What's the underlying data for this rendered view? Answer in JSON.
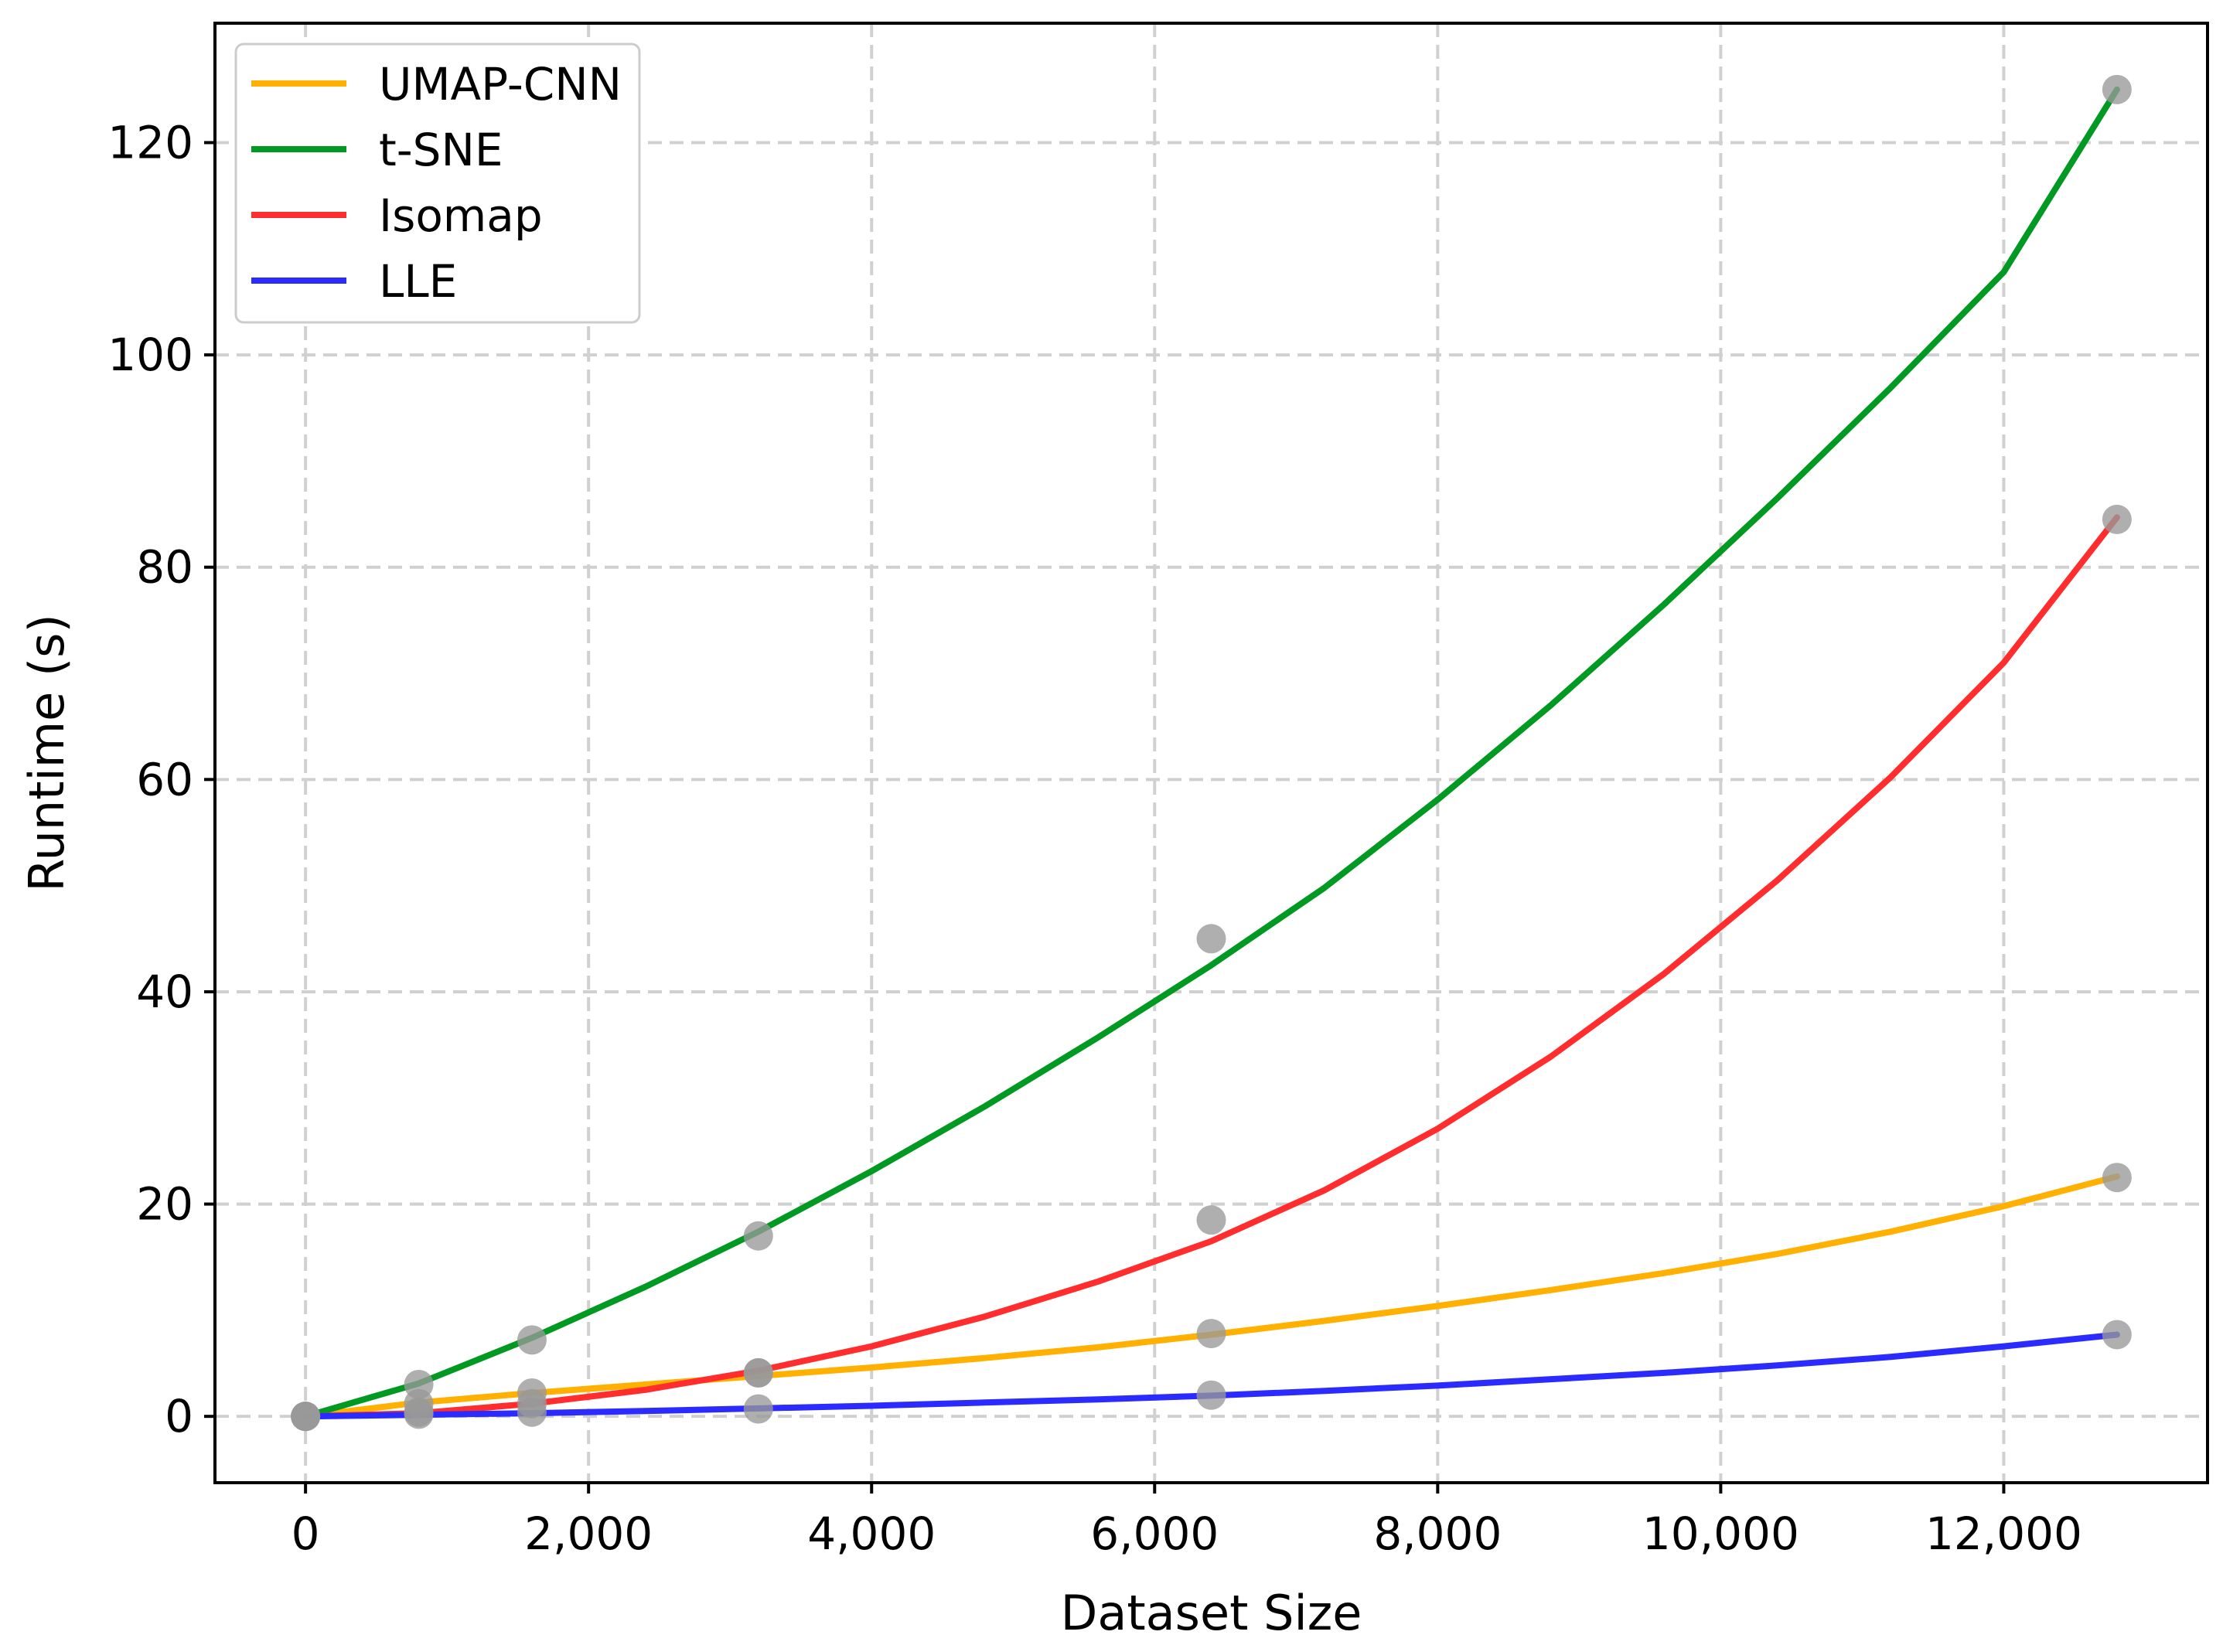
{
  "chart_data": {
    "type": "line",
    "title": "",
    "xlabel": "Dataset Size",
    "ylabel": "Runtime (s)",
    "xlim": [
      -640,
      13440
    ],
    "ylim": [
      -6.25,
      131.25
    ],
    "xticks": [
      0,
      2000,
      4000,
      6000,
      8000,
      10000,
      12000
    ],
    "xtick_labels": [
      "0",
      "2,000",
      "4,000",
      "6,000",
      "8,000",
      "10,000",
      "12,000"
    ],
    "yticks": [
      0,
      20,
      40,
      60,
      80,
      100,
      120
    ],
    "ytick_labels": [
      "0",
      "20",
      "40",
      "60",
      "80",
      "100",
      "120"
    ],
    "grid": true,
    "legend_position": "top-left",
    "series": [
      {
        "name": "UMAP-CNN",
        "color": "#ffb000",
        "points": [
          [
            0,
            0.0
          ],
          [
            800,
            1.2
          ],
          [
            1600,
            2.2
          ],
          [
            3200,
            4.1
          ],
          [
            6400,
            7.8
          ],
          [
            12800,
            22.5
          ]
        ],
        "curve": [
          [
            0,
            0.0
          ],
          [
            800,
            1.3
          ],
          [
            1600,
            2.2
          ],
          [
            2400,
            3.0
          ],
          [
            3200,
            3.8
          ],
          [
            4000,
            4.6
          ],
          [
            4800,
            5.5
          ],
          [
            5600,
            6.5
          ],
          [
            6400,
            7.7
          ],
          [
            7200,
            9.0
          ],
          [
            8000,
            10.4
          ],
          [
            8800,
            11.9
          ],
          [
            9600,
            13.5
          ],
          [
            10400,
            15.3
          ],
          [
            11200,
            17.4
          ],
          [
            12000,
            19.8
          ],
          [
            12800,
            22.6
          ]
        ]
      },
      {
        "name": "t-SNE",
        "color": "#009922",
        "points": [
          [
            0,
            0.0
          ],
          [
            800,
            3.0
          ],
          [
            1600,
            7.2
          ],
          [
            3200,
            17.0
          ],
          [
            6400,
            45.0
          ],
          [
            12800,
            125.0
          ]
        ],
        "curve": [
          [
            0,
            0.0
          ],
          [
            800,
            3.1
          ],
          [
            1600,
            7.4
          ],
          [
            2400,
            12.2
          ],
          [
            3200,
            17.4
          ],
          [
            4000,
            23.1
          ],
          [
            4800,
            29.2
          ],
          [
            5600,
            35.7
          ],
          [
            6400,
            42.5
          ],
          [
            7200,
            49.8
          ],
          [
            8000,
            58.1
          ],
          [
            8800,
            67.0
          ],
          [
            9600,
            76.5
          ],
          [
            10400,
            86.5
          ],
          [
            11200,
            96.9
          ],
          [
            12000,
            107.8
          ],
          [
            12800,
            125.0
          ]
        ]
      },
      {
        "name": "Isomap",
        "color": "#ff2d2d",
        "points": [
          [
            0,
            0.0
          ],
          [
            800,
            0.4
          ],
          [
            1600,
            1.2
          ],
          [
            3200,
            4.1
          ],
          [
            6400,
            18.5
          ],
          [
            12800,
            84.5
          ]
        ],
        "curve": [
          [
            0,
            0.0
          ],
          [
            800,
            0.3
          ],
          [
            1600,
            1.2
          ],
          [
            2400,
            2.5
          ],
          [
            3200,
            4.3
          ],
          [
            4000,
            6.6
          ],
          [
            4800,
            9.4
          ],
          [
            5600,
            12.7
          ],
          [
            6400,
            16.5
          ],
          [
            7200,
            21.3
          ],
          [
            8000,
            27.1
          ],
          [
            8800,
            33.9
          ],
          [
            9600,
            41.7
          ],
          [
            10400,
            50.5
          ],
          [
            11200,
            60.2
          ],
          [
            12000,
            71.0
          ],
          [
            12800,
            84.7
          ]
        ]
      },
      {
        "name": "LLE",
        "color": "#2b2bff",
        "points": [
          [
            0,
            0.0
          ],
          [
            800,
            0.2
          ],
          [
            1600,
            0.4
          ],
          [
            3200,
            0.7
          ],
          [
            6400,
            2.0
          ],
          [
            12800,
            7.7
          ]
        ],
        "curve": [
          [
            0,
            0.0
          ],
          [
            800,
            0.15
          ],
          [
            1600,
            0.3
          ],
          [
            2400,
            0.5
          ],
          [
            3200,
            0.75
          ],
          [
            4000,
            1.0
          ],
          [
            4800,
            1.3
          ],
          [
            5600,
            1.6
          ],
          [
            6400,
            1.95
          ],
          [
            7200,
            2.4
          ],
          [
            8000,
            2.9
          ],
          [
            8800,
            3.5
          ],
          [
            9600,
            4.1
          ],
          [
            10400,
            4.8
          ],
          [
            11200,
            5.6
          ],
          [
            12000,
            6.6
          ],
          [
            12800,
            7.7
          ]
        ]
      }
    ],
    "marker_color": "#999999"
  }
}
